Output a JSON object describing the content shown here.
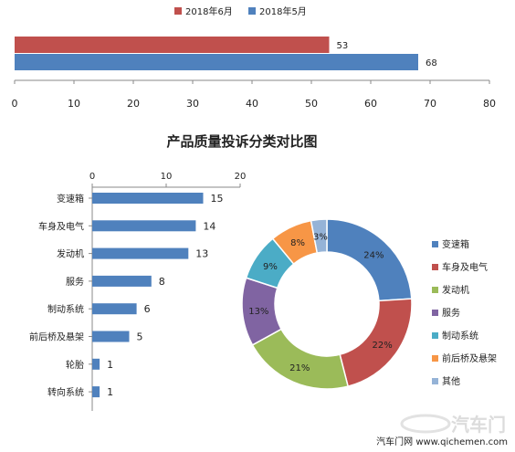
{
  "chart_data": [
    {
      "type": "bar",
      "orientation": "horizontal",
      "series": [
        {
          "name": "2018年6月",
          "values": [
            53
          ],
          "color": "#c0504d"
        },
        {
          "name": "2018年5月",
          "values": [
            68
          ],
          "color": "#4f81bd"
        }
      ],
      "xlim": [
        0,
        80
      ],
      "xticks": [
        "0",
        "10",
        "20",
        "30",
        "40",
        "50",
        "60",
        "70",
        "80"
      ],
      "legend_position": "top",
      "data_labels": [
        "53",
        "68"
      ]
    },
    {
      "type": "bar",
      "orientation": "horizontal",
      "title": "产品质量投诉分类对比图",
      "categories": [
        "变速箱",
        "车身及电气",
        "发动机",
        "服务",
        "制动系统",
        "前后桥及悬架",
        "轮胎",
        "转向系统"
      ],
      "values": [
        15,
        14,
        13,
        8,
        6,
        5,
        1,
        1
      ],
      "color": "#4f81bd",
      "xlim": [
        0,
        20
      ],
      "xticks": [
        "0",
        "10",
        "20"
      ],
      "axis_position": "top"
    },
    {
      "type": "pie",
      "variant": "doughnut",
      "categories": [
        "变速箱",
        "车身及电气",
        "发动机",
        "服务",
        "制动系统",
        "前后桥及悬架",
        "其他"
      ],
      "values": [
        24,
        22,
        21,
        13,
        9,
        8,
        3
      ],
      "labels": [
        "24%",
        "22%",
        "21%",
        "13%",
        "9%",
        "8%",
        "3%"
      ],
      "colors": [
        "#4f81bd",
        "#c0504d",
        "#9bbb59",
        "#8064a2",
        "#4bacc6",
        "#f79646",
        "#95b3d7"
      ],
      "legend_position": "right"
    }
  ],
  "watermark": {
    "brand": "汽车门",
    "text": "汽车门网 www.qichemen.com"
  }
}
